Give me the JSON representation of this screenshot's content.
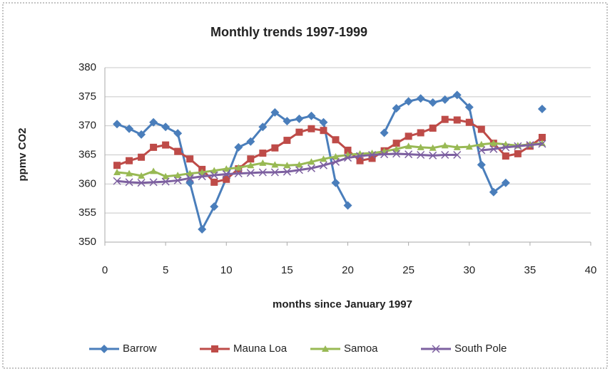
{
  "chart_data": {
    "type": "line",
    "title": "Monthly trends 1997-1999",
    "x_label": "months since January 1997",
    "y_label": "ppmv CO2",
    "x": [
      1,
      2,
      3,
      4,
      5,
      6,
      7,
      8,
      9,
      10,
      11,
      12,
      13,
      14,
      15,
      16,
      17,
      18,
      19,
      20,
      21,
      22,
      23,
      24,
      25,
      26,
      27,
      28,
      29,
      30,
      31,
      32,
      33,
      34,
      35,
      36
    ],
    "series": [
      {
        "name": "Barrow",
        "color": "#4a7ebb",
        "marker": "diamond",
        "values": [
          370.3,
          369.5,
          368.5,
          370.6,
          369.8,
          368.7,
          360.2,
          352.2,
          356.1,
          361,
          366.3,
          367.3,
          369.8,
          372.3,
          370.8,
          371.2,
          371.7,
          370.6,
          360.2,
          356.3,
          null,
          null,
          368.8,
          373,
          374.2,
          374.7,
          374,
          374.5,
          375.3,
          373.2,
          363.3,
          358.6,
          360.2,
          null,
          null,
          372.9
        ]
      },
      {
        "name": "Mauna Loa",
        "color": "#be4b48",
        "marker": "square",
        "values": [
          363.2,
          364,
          364.6,
          366.3,
          366.7,
          365.6,
          364.3,
          362.5,
          360.3,
          360.8,
          362.6,
          364.3,
          365.3,
          366.2,
          367.5,
          368.9,
          369.5,
          369.2,
          367.6,
          365.8,
          364,
          364.4,
          365.7,
          367,
          368.2,
          368.8,
          369.6,
          371.1,
          371,
          370.6,
          369.4,
          367,
          364.8,
          365.2,
          366.5,
          368
        ]
      },
      {
        "name": "Samoa",
        "color": "#98b954",
        "marker": "triangle",
        "values": [
          362,
          361.8,
          361.4,
          362.2,
          361.3,
          361.5,
          361.8,
          362,
          362.3,
          362.6,
          362.8,
          363.2,
          363.6,
          363.3,
          363.2,
          363.3,
          363.8,
          364.3,
          364.7,
          365,
          365.2,
          365.3,
          365.6,
          366,
          366.5,
          366.3,
          366.2,
          366.6,
          366.3,
          366.4,
          366.8,
          367,
          366.8,
          366.6,
          366.8,
          367
        ]
      },
      {
        "name": "South Pole",
        "color": "#7d60a0",
        "marker": "x",
        "values": [
          360.5,
          360.3,
          360.2,
          360.3,
          360.4,
          360.6,
          361,
          361.3,
          361.5,
          361.7,
          361.8,
          361.9,
          362,
          362,
          362.1,
          362.4,
          362.7,
          363.2,
          363.8,
          364.5,
          364.8,
          365,
          365.1,
          365.2,
          365.1,
          365,
          364.9,
          365,
          365,
          null,
          365.8,
          366,
          366.3,
          366.5,
          366.7,
          366.9
        ]
      }
    ],
    "xlim": [
      0,
      40
    ],
    "xticks": [
      0,
      5,
      10,
      15,
      20,
      25,
      30,
      35,
      40
    ],
    "ylim": [
      350,
      380
    ],
    "yticks": [
      350,
      355,
      360,
      365,
      370,
      375,
      380
    ],
    "grid": true,
    "legend": "bottom"
  }
}
